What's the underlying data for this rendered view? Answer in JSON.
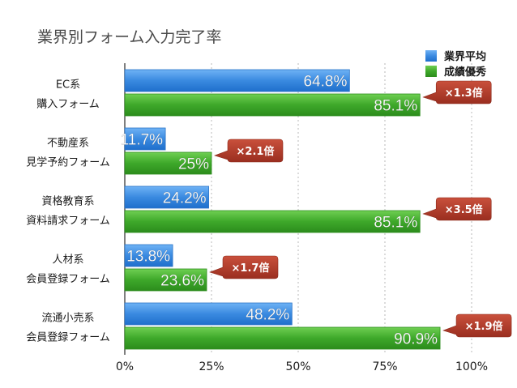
{
  "chart_data": {
    "type": "bar",
    "orientation": "horizontal",
    "title": "業界別フォーム入力完了率",
    "categories": [
      [
        "EC系",
        "購入フォーム"
      ],
      [
        "不動産系",
        "見学予約フォーム"
      ],
      [
        "資格教育系",
        "資料請求フォーム"
      ],
      [
        "人材系",
        "会員登録フォーム"
      ],
      [
        "流通小売系",
        "会員登録フォーム"
      ]
    ],
    "series": [
      {
        "name": "業界平均",
        "color": "#3a8ae0",
        "values": [
          64.8,
          11.7,
          24.2,
          13.8,
          48.2
        ],
        "labels": [
          "64.8%",
          "11.7%",
          "24.2%",
          "13.8%",
          "48.2%"
        ]
      },
      {
        "name": "成績優秀",
        "color": "#3ea82a",
        "values": [
          85.1,
          25,
          85.1,
          23.6,
          90.9
        ],
        "labels": [
          "85.1%",
          "25%",
          "85.1%",
          "23.6%",
          "90.9%"
        ]
      }
    ],
    "ratios": [
      "×1.3倍",
      "×2.1倍",
      "×3.5倍",
      "×1.7倍",
      "×1.9倍"
    ],
    "xlim": [
      0,
      100
    ],
    "xticks": [
      0,
      25,
      50,
      75,
      100
    ],
    "xtick_labels": [
      "0%",
      "25%",
      "50%",
      "75%",
      "100%"
    ],
    "grid": true,
    "legend_position": "top-right",
    "callout_color": "#b03a2a"
  }
}
